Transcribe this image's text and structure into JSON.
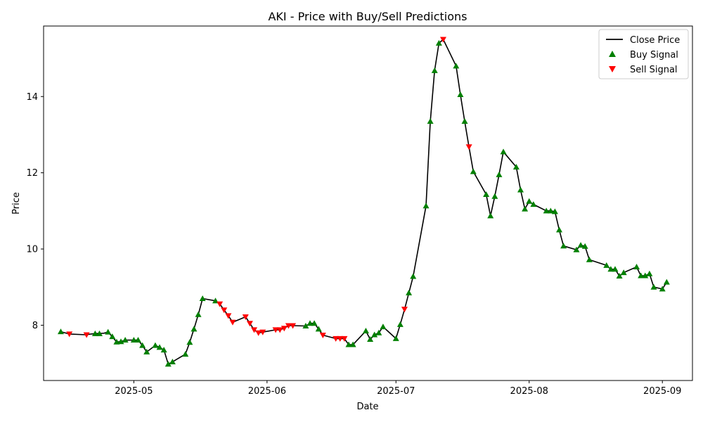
{
  "chart_data": {
    "type": "line",
    "title": "AKI - Price with Buy/Sell Predictions",
    "xlabel": "Date",
    "ylabel": "Price",
    "xlim": [
      "2025-04-10",
      "2025-09-08"
    ],
    "ylim": [
      6.55,
      15.85
    ],
    "grid": false,
    "legend_position": "top-right",
    "x_ticks": [
      "2025-05-01",
      "2025-06-01",
      "2025-07-01",
      "2025-08-01",
      "2025-09-01"
    ],
    "x_tick_labels": [
      "2025-05",
      "2025-06",
      "2025-07",
      "2025-08",
      "2025-09"
    ],
    "y_ticks": [
      8,
      10,
      12,
      14
    ],
    "y_tick_labels": [
      "8",
      "10",
      "12",
      "14"
    ],
    "legend": [
      {
        "label": "Close Price",
        "kind": "line",
        "color": "#000000"
      },
      {
        "label": "Buy Signal",
        "kind": "up-triangle",
        "color": "#008000"
      },
      {
        "label": "Sell Signal",
        "kind": "down-triangle",
        "color": "#ff0000"
      }
    ],
    "close_price": {
      "name": "Close Price",
      "color": "#000000",
      "points": [
        [
          "2025-04-14",
          7.83
        ],
        [
          "2025-04-16",
          7.77
        ],
        [
          "2025-04-20",
          7.75
        ],
        [
          "2025-04-21",
          7.77
        ],
        [
          "2025-04-22",
          7.78
        ],
        [
          "2025-04-24",
          7.79
        ],
        [
          "2025-04-25",
          7.82
        ],
        [
          "2025-04-26",
          7.7
        ],
        [
          "2025-04-27",
          7.56
        ],
        [
          "2025-04-28",
          7.57
        ],
        [
          "2025-04-29",
          7.61
        ],
        [
          "2025-05-01",
          7.61
        ],
        [
          "2025-05-02",
          7.61
        ],
        [
          "2025-05-03",
          7.47
        ],
        [
          "2025-05-04",
          7.3
        ],
        [
          "2025-05-06",
          7.47
        ],
        [
          "2025-05-07",
          7.42
        ],
        [
          "2025-05-08",
          7.35
        ],
        [
          "2025-05-09",
          6.98
        ],
        [
          "2025-05-10",
          7.04
        ],
        [
          "2025-05-13",
          7.24
        ],
        [
          "2025-05-14",
          7.55
        ],
        [
          "2025-05-15",
          7.9
        ],
        [
          "2025-05-16",
          8.28
        ],
        [
          "2025-05-17",
          8.7
        ],
        [
          "2025-05-20",
          8.64
        ],
        [
          "2025-05-21",
          8.56
        ],
        [
          "2025-05-22",
          8.4
        ],
        [
          "2025-05-23",
          8.25
        ],
        [
          "2025-05-24",
          8.08
        ],
        [
          "2025-05-27",
          8.22
        ],
        [
          "2025-05-28",
          8.05
        ],
        [
          "2025-05-29",
          7.88
        ],
        [
          "2025-05-30",
          7.8
        ],
        [
          "2025-05-31",
          7.82
        ],
        [
          "2025-06-03",
          7.88
        ],
        [
          "2025-06-04",
          7.88
        ],
        [
          "2025-06-05",
          7.92
        ],
        [
          "2025-06-06",
          7.99
        ],
        [
          "2025-06-07",
          7.99
        ],
        [
          "2025-06-10",
          7.98
        ],
        [
          "2025-06-11",
          8.05
        ],
        [
          "2025-06-12",
          8.05
        ],
        [
          "2025-06-13",
          7.9
        ],
        [
          "2025-06-14",
          7.74
        ],
        [
          "2025-06-17",
          7.65
        ],
        [
          "2025-06-18",
          7.65
        ],
        [
          "2025-06-19",
          7.65
        ],
        [
          "2025-06-20",
          7.49
        ],
        [
          "2025-06-21",
          7.49
        ],
        [
          "2025-06-24",
          7.85
        ],
        [
          "2025-06-25",
          7.63
        ],
        [
          "2025-06-26",
          7.75
        ],
        [
          "2025-06-27",
          7.8
        ],
        [
          "2025-06-28",
          7.96
        ],
        [
          "2025-07-01",
          7.65
        ],
        [
          "2025-07-02",
          8.02
        ],
        [
          "2025-07-03",
          8.42
        ],
        [
          "2025-07-04",
          8.85
        ],
        [
          "2025-07-05",
          9.28
        ],
        [
          "2025-07-08",
          11.13
        ],
        [
          "2025-07-09",
          13.35
        ],
        [
          "2025-07-10",
          14.68
        ],
        [
          "2025-07-11",
          15.4
        ],
        [
          "2025-07-12",
          15.5
        ],
        [
          "2025-07-15",
          14.8
        ],
        [
          "2025-07-16",
          14.05
        ],
        [
          "2025-07-17",
          13.35
        ],
        [
          "2025-07-18",
          12.68
        ],
        [
          "2025-07-19",
          12.03
        ],
        [
          "2025-07-22",
          11.43
        ],
        [
          "2025-07-23",
          10.87
        ],
        [
          "2025-07-24",
          11.38
        ],
        [
          "2025-07-25",
          11.95
        ],
        [
          "2025-07-26",
          12.55
        ],
        [
          "2025-07-29",
          12.15
        ],
        [
          "2025-07-30",
          11.55
        ],
        [
          "2025-07-31",
          11.05
        ],
        [
          "2025-08-01",
          11.25
        ],
        [
          "2025-08-02",
          11.17
        ],
        [
          "2025-08-05",
          11.0
        ],
        [
          "2025-08-06",
          11.0
        ],
        [
          "2025-08-07",
          10.98
        ],
        [
          "2025-08-08",
          10.5
        ],
        [
          "2025-08-09",
          10.08
        ],
        [
          "2025-08-12",
          9.98
        ],
        [
          "2025-08-13",
          10.1
        ],
        [
          "2025-08-14",
          10.07
        ],
        [
          "2025-08-15",
          9.72
        ],
        [
          "2025-08-19",
          9.57
        ],
        [
          "2025-08-20",
          9.47
        ],
        [
          "2025-08-21",
          9.47
        ],
        [
          "2025-08-22",
          9.29
        ],
        [
          "2025-08-23",
          9.38
        ],
        [
          "2025-08-26",
          9.53
        ],
        [
          "2025-08-27",
          9.3
        ],
        [
          "2025-08-28",
          9.3
        ],
        [
          "2025-08-29",
          9.35
        ],
        [
          "2025-08-30",
          9.0
        ],
        [
          "2025-09-01",
          8.95
        ],
        [
          "2025-09-02",
          9.13
        ]
      ]
    },
    "buy_signals": {
      "name": "Buy Signal",
      "color": "#008000",
      "points": [
        [
          "2025-04-14",
          7.83
        ],
        [
          "2025-04-22",
          7.78
        ],
        [
          "2025-04-23",
          7.78
        ],
        [
          "2025-04-25",
          7.82
        ],
        [
          "2025-04-26",
          7.7
        ],
        [
          "2025-04-27",
          7.56
        ],
        [
          "2025-04-28",
          7.57
        ],
        [
          "2025-04-29",
          7.61
        ],
        [
          "2025-05-01",
          7.61
        ],
        [
          "2025-05-02",
          7.61
        ],
        [
          "2025-05-03",
          7.47
        ],
        [
          "2025-05-04",
          7.3
        ],
        [
          "2025-05-06",
          7.47
        ],
        [
          "2025-05-07",
          7.42
        ],
        [
          "2025-05-08",
          7.35
        ],
        [
          "2025-05-09",
          6.98
        ],
        [
          "2025-05-10",
          7.04
        ],
        [
          "2025-05-13",
          7.24
        ],
        [
          "2025-05-14",
          7.55
        ],
        [
          "2025-05-15",
          7.9
        ],
        [
          "2025-05-16",
          8.28
        ],
        [
          "2025-05-17",
          8.7
        ],
        [
          "2025-05-20",
          8.64
        ],
        [
          "2025-06-10",
          7.98
        ],
        [
          "2025-06-11",
          8.05
        ],
        [
          "2025-06-12",
          8.05
        ],
        [
          "2025-06-13",
          7.9
        ],
        [
          "2025-06-20",
          7.49
        ],
        [
          "2025-06-21",
          7.49
        ],
        [
          "2025-06-24",
          7.85
        ],
        [
          "2025-06-25",
          7.63
        ],
        [
          "2025-06-26",
          7.75
        ],
        [
          "2025-06-27",
          7.8
        ],
        [
          "2025-06-28",
          7.96
        ],
        [
          "2025-07-01",
          7.65
        ],
        [
          "2025-07-02",
          8.02
        ],
        [
          "2025-07-04",
          8.85
        ],
        [
          "2025-07-05",
          9.28
        ],
        [
          "2025-07-08",
          11.13
        ],
        [
          "2025-07-09",
          13.35
        ],
        [
          "2025-07-10",
          14.68
        ],
        [
          "2025-07-11",
          15.4
        ],
        [
          "2025-07-15",
          14.8
        ],
        [
          "2025-07-16",
          14.05
        ],
        [
          "2025-07-17",
          13.35
        ],
        [
          "2025-07-19",
          12.03
        ],
        [
          "2025-07-22",
          11.43
        ],
        [
          "2025-07-23",
          10.87
        ],
        [
          "2025-07-24",
          11.38
        ],
        [
          "2025-07-25",
          11.95
        ],
        [
          "2025-07-26",
          12.55
        ],
        [
          "2025-07-29",
          12.15
        ],
        [
          "2025-07-30",
          11.55
        ],
        [
          "2025-07-31",
          11.05
        ],
        [
          "2025-08-01",
          11.25
        ],
        [
          "2025-08-02",
          11.17
        ],
        [
          "2025-08-05",
          11.0
        ],
        [
          "2025-08-06",
          11.0
        ],
        [
          "2025-08-07",
          10.98
        ],
        [
          "2025-08-08",
          10.5
        ],
        [
          "2025-08-09",
          10.08
        ],
        [
          "2025-08-12",
          9.98
        ],
        [
          "2025-08-13",
          10.1
        ],
        [
          "2025-08-14",
          10.07
        ],
        [
          "2025-08-15",
          9.72
        ],
        [
          "2025-08-19",
          9.57
        ],
        [
          "2025-08-20",
          9.47
        ],
        [
          "2025-08-21",
          9.47
        ],
        [
          "2025-08-22",
          9.29
        ],
        [
          "2025-08-23",
          9.38
        ],
        [
          "2025-08-26",
          9.53
        ],
        [
          "2025-08-27",
          9.3
        ],
        [
          "2025-08-28",
          9.3
        ],
        [
          "2025-08-29",
          9.35
        ],
        [
          "2025-08-30",
          9.0
        ],
        [
          "2025-09-01",
          8.95
        ],
        [
          "2025-09-02",
          9.13
        ]
      ]
    },
    "sell_signals": {
      "name": "Sell Signal",
      "color": "#ff0000",
      "points": [
        [
          "2025-04-16",
          7.77
        ],
        [
          "2025-04-20",
          7.75
        ],
        [
          "2025-05-21",
          8.56
        ],
        [
          "2025-05-22",
          8.4
        ],
        [
          "2025-05-23",
          8.25
        ],
        [
          "2025-05-24",
          8.08
        ],
        [
          "2025-05-27",
          8.22
        ],
        [
          "2025-05-28",
          8.05
        ],
        [
          "2025-05-29",
          7.88
        ],
        [
          "2025-05-30",
          7.8
        ],
        [
          "2025-05-31",
          7.82
        ],
        [
          "2025-06-03",
          7.88
        ],
        [
          "2025-06-04",
          7.88
        ],
        [
          "2025-06-05",
          7.92
        ],
        [
          "2025-06-06",
          7.99
        ],
        [
          "2025-06-07",
          7.99
        ],
        [
          "2025-06-14",
          7.74
        ],
        [
          "2025-06-17",
          7.65
        ],
        [
          "2025-06-18",
          7.65
        ],
        [
          "2025-06-19",
          7.65
        ],
        [
          "2025-07-03",
          8.42
        ],
        [
          "2025-07-12",
          15.5
        ],
        [
          "2025-07-18",
          12.68
        ]
      ]
    }
  }
}
